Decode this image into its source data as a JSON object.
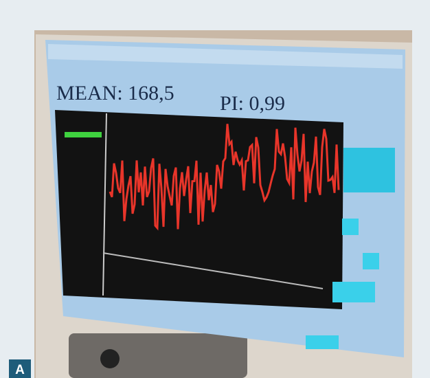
{
  "panel_label": "A",
  "screen": {
    "mean": "MEAN: 168,5",
    "pi": "PI: 0,99"
  }
}
